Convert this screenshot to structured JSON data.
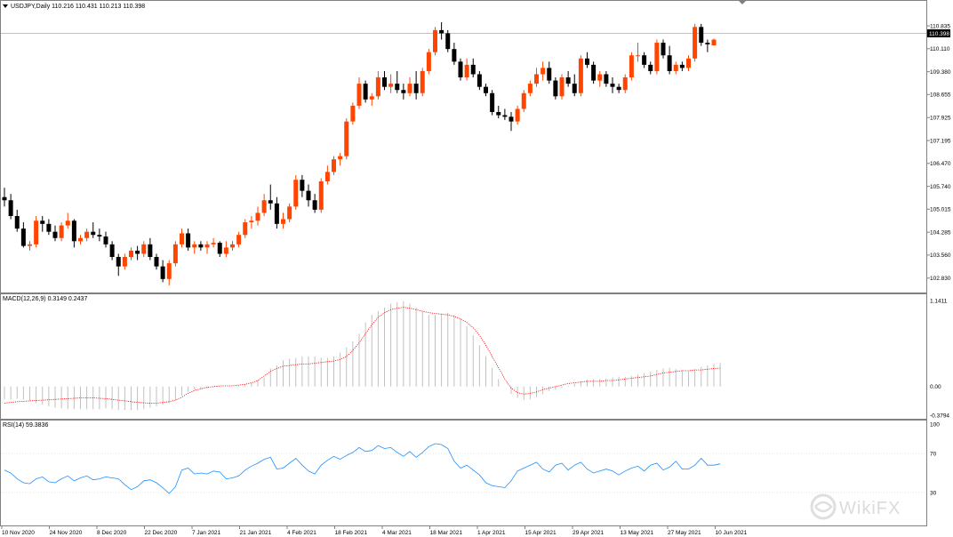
{
  "chart_data": [
    {
      "type": "candlestick",
      "label": "USDJPY,Daily  110.216 110.431 110.213 110.398",
      "current_price_label": "110.398",
      "ylim": [
        102.4,
        111.6
      ],
      "price_ticks": [
        "110.835",
        "110.110",
        "109.380",
        "108.655",
        "107.925",
        "107.195",
        "106.470",
        "105.740",
        "105.015",
        "104.285",
        "103.560",
        "102.830"
      ],
      "colors": {
        "bull": "#ff4500",
        "bear": "#000000",
        "current_line": "#c0c0c0"
      },
      "candles": [
        {
          "o": 105.4,
          "h": 105.7,
          "l": 105.1,
          "c": 105.3
        },
        {
          "o": 105.3,
          "h": 105.5,
          "l": 104.7,
          "c": 104.8
        },
        {
          "o": 104.8,
          "h": 105.0,
          "l": 104.3,
          "c": 104.4
        },
        {
          "o": 104.4,
          "h": 104.6,
          "l": 103.8,
          "c": 103.85
        },
        {
          "o": 103.85,
          "h": 104.0,
          "l": 103.7,
          "c": 103.9
        },
        {
          "o": 103.9,
          "h": 104.8,
          "l": 103.8,
          "c": 104.65
        },
        {
          "o": 104.65,
          "h": 104.8,
          "l": 104.3,
          "c": 104.55
        },
        {
          "o": 104.55,
          "h": 104.7,
          "l": 104.2,
          "c": 104.3
        },
        {
          "o": 104.3,
          "h": 104.5,
          "l": 104.0,
          "c": 104.1
        },
        {
          "o": 104.1,
          "h": 104.6,
          "l": 104.0,
          "c": 104.5
        },
        {
          "o": 104.5,
          "h": 104.9,
          "l": 104.4,
          "c": 104.65
        },
        {
          "o": 104.65,
          "h": 104.7,
          "l": 103.8,
          "c": 104.0
        },
        {
          "o": 104.0,
          "h": 104.2,
          "l": 103.9,
          "c": 104.1
        },
        {
          "o": 104.1,
          "h": 104.4,
          "l": 104.0,
          "c": 104.3
        },
        {
          "o": 104.3,
          "h": 104.6,
          "l": 104.1,
          "c": 104.2
        },
        {
          "o": 104.2,
          "h": 104.4,
          "l": 104.0,
          "c": 104.15
        },
        {
          "o": 104.15,
          "h": 104.3,
          "l": 103.8,
          "c": 103.9
        },
        {
          "o": 103.9,
          "h": 104.0,
          "l": 103.4,
          "c": 103.5
        },
        {
          "o": 103.5,
          "h": 103.6,
          "l": 102.9,
          "c": 103.2
        },
        {
          "o": 103.2,
          "h": 103.6,
          "l": 103.1,
          "c": 103.5
        },
        {
          "o": 103.5,
          "h": 103.8,
          "l": 103.4,
          "c": 103.7
        },
        {
          "o": 103.7,
          "h": 103.85,
          "l": 103.4,
          "c": 103.6
        },
        {
          "o": 103.6,
          "h": 104.0,
          "l": 103.5,
          "c": 103.9
        },
        {
          "o": 103.9,
          "h": 104.1,
          "l": 103.4,
          "c": 103.5
        },
        {
          "o": 103.5,
          "h": 103.6,
          "l": 103.1,
          "c": 103.2
        },
        {
          "o": 103.2,
          "h": 103.4,
          "l": 102.7,
          "c": 102.8
        },
        {
          "o": 102.8,
          "h": 103.4,
          "l": 102.6,
          "c": 103.3
        },
        {
          "o": 103.3,
          "h": 104.0,
          "l": 103.2,
          "c": 103.9
        },
        {
          "o": 103.9,
          "h": 104.4,
          "l": 103.8,
          "c": 104.25
        },
        {
          "o": 104.25,
          "h": 104.4,
          "l": 103.7,
          "c": 103.8
        },
        {
          "o": 103.8,
          "h": 104.0,
          "l": 103.6,
          "c": 103.9
        },
        {
          "o": 103.9,
          "h": 104.0,
          "l": 103.7,
          "c": 103.8
        },
        {
          "o": 103.8,
          "h": 104.0,
          "l": 103.6,
          "c": 103.9
        },
        {
          "o": 103.9,
          "h": 104.1,
          "l": 103.8,
          "c": 103.95
        },
        {
          "o": 103.95,
          "h": 104.0,
          "l": 103.5,
          "c": 103.6
        },
        {
          "o": 103.6,
          "h": 104.0,
          "l": 103.5,
          "c": 103.8
        },
        {
          "o": 103.8,
          "h": 104.0,
          "l": 103.7,
          "c": 103.9
        },
        {
          "o": 103.9,
          "h": 104.3,
          "l": 103.8,
          "c": 104.2
        },
        {
          "o": 104.2,
          "h": 104.7,
          "l": 104.1,
          "c": 104.6
        },
        {
          "o": 104.6,
          "h": 104.8,
          "l": 104.4,
          "c": 104.65
        },
        {
          "o": 104.65,
          "h": 105.1,
          "l": 104.5,
          "c": 104.9
        },
        {
          "o": 104.9,
          "h": 105.5,
          "l": 104.8,
          "c": 105.3
        },
        {
          "o": 105.3,
          "h": 105.8,
          "l": 105.0,
          "c": 105.2
        },
        {
          "o": 105.2,
          "h": 105.4,
          "l": 104.4,
          "c": 104.55
        },
        {
          "o": 104.55,
          "h": 104.9,
          "l": 104.4,
          "c": 104.7
        },
        {
          "o": 104.7,
          "h": 105.2,
          "l": 104.6,
          "c": 105.1
        },
        {
          "o": 105.1,
          "h": 106.1,
          "l": 105.0,
          "c": 105.95
        },
        {
          "o": 105.95,
          "h": 106.1,
          "l": 105.4,
          "c": 105.6
        },
        {
          "o": 105.6,
          "h": 105.8,
          "l": 105.1,
          "c": 105.3
        },
        {
          "o": 105.3,
          "h": 105.5,
          "l": 104.9,
          "c": 105.0
        },
        {
          "o": 105.0,
          "h": 106.0,
          "l": 104.9,
          "c": 105.9
        },
        {
          "o": 105.9,
          "h": 106.4,
          "l": 105.8,
          "c": 106.2
        },
        {
          "o": 106.2,
          "h": 106.7,
          "l": 106.1,
          "c": 106.6
        },
        {
          "o": 106.6,
          "h": 106.8,
          "l": 106.4,
          "c": 106.7
        },
        {
          "o": 106.7,
          "h": 107.9,
          "l": 106.6,
          "c": 107.8
        },
        {
          "o": 107.8,
          "h": 108.4,
          "l": 107.7,
          "c": 108.3
        },
        {
          "o": 108.3,
          "h": 109.2,
          "l": 108.2,
          "c": 109.0
        },
        {
          "o": 109.0,
          "h": 109.1,
          "l": 108.4,
          "c": 108.5
        },
        {
          "o": 108.5,
          "h": 108.7,
          "l": 108.3,
          "c": 108.6
        },
        {
          "o": 108.6,
          "h": 109.4,
          "l": 108.5,
          "c": 109.2
        },
        {
          "o": 109.2,
          "h": 109.4,
          "l": 108.8,
          "c": 108.9
        },
        {
          "o": 108.9,
          "h": 109.3,
          "l": 108.7,
          "c": 109.0
        },
        {
          "o": 109.0,
          "h": 109.4,
          "l": 108.7,
          "c": 108.8
        },
        {
          "o": 108.8,
          "h": 109.0,
          "l": 108.5,
          "c": 108.7
        },
        {
          "o": 108.7,
          "h": 109.2,
          "l": 108.6,
          "c": 109.0
        },
        {
          "o": 109.0,
          "h": 109.4,
          "l": 108.5,
          "c": 108.7
        },
        {
          "o": 108.7,
          "h": 109.5,
          "l": 108.6,
          "c": 109.4
        },
        {
          "o": 109.4,
          "h": 110.1,
          "l": 109.3,
          "c": 110.0
        },
        {
          "o": 110.0,
          "h": 110.8,
          "l": 109.9,
          "c": 110.7
        },
        {
          "o": 110.7,
          "h": 110.95,
          "l": 110.4,
          "c": 110.6
        },
        {
          "o": 110.6,
          "h": 110.7,
          "l": 110.0,
          "c": 110.1
        },
        {
          "o": 110.1,
          "h": 110.3,
          "l": 109.6,
          "c": 109.7
        },
        {
          "o": 109.7,
          "h": 109.8,
          "l": 109.1,
          "c": 109.2
        },
        {
          "o": 109.2,
          "h": 109.8,
          "l": 109.1,
          "c": 109.6
        },
        {
          "o": 109.6,
          "h": 109.8,
          "l": 109.2,
          "c": 109.3
        },
        {
          "o": 109.3,
          "h": 109.4,
          "l": 108.8,
          "c": 108.9
        },
        {
          "o": 108.9,
          "h": 109.0,
          "l": 108.6,
          "c": 108.7
        },
        {
          "o": 108.7,
          "h": 108.8,
          "l": 108.0,
          "c": 108.1
        },
        {
          "o": 108.1,
          "h": 108.3,
          "l": 107.9,
          "c": 108.0
        },
        {
          "o": 108.0,
          "h": 108.2,
          "l": 107.85,
          "c": 107.95
        },
        {
          "o": 107.95,
          "h": 108.1,
          "l": 107.5,
          "c": 107.8
        },
        {
          "o": 107.8,
          "h": 108.3,
          "l": 107.7,
          "c": 108.2
        },
        {
          "o": 108.2,
          "h": 108.8,
          "l": 108.1,
          "c": 108.7
        },
        {
          "o": 108.7,
          "h": 109.1,
          "l": 108.6,
          "c": 109.0
        },
        {
          "o": 109.0,
          "h": 109.5,
          "l": 108.9,
          "c": 109.3
        },
        {
          "o": 109.3,
          "h": 109.7,
          "l": 109.1,
          "c": 109.5
        },
        {
          "o": 109.5,
          "h": 109.7,
          "l": 109.0,
          "c": 109.1
        },
        {
          "o": 109.1,
          "h": 109.2,
          "l": 108.5,
          "c": 108.6
        },
        {
          "o": 108.6,
          "h": 109.3,
          "l": 108.5,
          "c": 109.2
        },
        {
          "o": 109.2,
          "h": 109.4,
          "l": 108.9,
          "c": 109.0
        },
        {
          "o": 109.0,
          "h": 109.3,
          "l": 108.6,
          "c": 108.7
        },
        {
          "o": 108.7,
          "h": 109.9,
          "l": 108.6,
          "c": 109.8
        },
        {
          "o": 109.8,
          "h": 110.0,
          "l": 109.5,
          "c": 109.6
        },
        {
          "o": 109.6,
          "h": 109.7,
          "l": 109.0,
          "c": 109.1
        },
        {
          "o": 109.1,
          "h": 109.4,
          "l": 108.9,
          "c": 109.3
        },
        {
          "o": 109.3,
          "h": 109.4,
          "l": 108.9,
          "c": 109.0
        },
        {
          "o": 109.0,
          "h": 109.2,
          "l": 108.7,
          "c": 108.9
        },
        {
          "o": 108.9,
          "h": 109.0,
          "l": 108.7,
          "c": 108.8
        },
        {
          "o": 108.8,
          "h": 109.3,
          "l": 108.7,
          "c": 109.2
        },
        {
          "o": 109.2,
          "h": 110.0,
          "l": 109.1,
          "c": 109.9
        },
        {
          "o": 109.9,
          "h": 110.3,
          "l": 109.7,
          "c": 109.9
        },
        {
          "o": 109.9,
          "h": 110.0,
          "l": 109.5,
          "c": 109.6
        },
        {
          "o": 109.6,
          "h": 109.7,
          "l": 109.3,
          "c": 109.4
        },
        {
          "o": 109.4,
          "h": 110.4,
          "l": 109.3,
          "c": 110.3
        },
        {
          "o": 110.3,
          "h": 110.4,
          "l": 109.8,
          "c": 109.9
        },
        {
          "o": 109.9,
          "h": 110.2,
          "l": 109.3,
          "c": 109.4
        },
        {
          "o": 109.4,
          "h": 109.7,
          "l": 109.3,
          "c": 109.6
        },
        {
          "o": 109.6,
          "h": 109.7,
          "l": 109.4,
          "c": 109.5
        },
        {
          "o": 109.5,
          "h": 109.9,
          "l": 109.4,
          "c": 109.8
        },
        {
          "o": 109.8,
          "h": 110.9,
          "l": 109.7,
          "c": 110.8
        },
        {
          "o": 110.8,
          "h": 110.9,
          "l": 110.2,
          "c": 110.3
        },
        {
          "o": 110.3,
          "h": 110.4,
          "l": 110.0,
          "c": 110.25
        },
        {
          "o": 110.216,
          "h": 110.431,
          "l": 110.213,
          "c": 110.398
        }
      ]
    },
    {
      "type": "bar+line",
      "label": "MACD(12,26,9) 0.3149 0.2437",
      "ylim": [
        -0.3794,
        1.1411
      ],
      "ticks": [
        "1.1411",
        "0.00",
        "-0.3794"
      ],
      "colors": {
        "histogram": "#c0c0c0",
        "signal": "#ff0000"
      },
      "histogram": [
        -0.17,
        -0.17,
        -0.16,
        -0.17,
        -0.19,
        -0.22,
        -0.24,
        -0.26,
        -0.28,
        -0.29,
        -0.3,
        -0.3,
        -0.3,
        -0.3,
        -0.3,
        -0.3,
        -0.29,
        -0.3,
        -0.31,
        -0.31,
        -0.31,
        -0.31,
        -0.3,
        -0.28,
        -0.26,
        -0.24,
        -0.22,
        -0.18,
        -0.12,
        -0.07,
        -0.04,
        -0.03,
        -0.02,
        -0.01,
        0.0,
        0.0,
        0.0,
        0.01,
        0.03,
        0.05,
        0.08,
        0.12,
        0.24,
        0.28,
        0.35,
        0.37,
        0.38,
        0.4,
        0.4,
        0.4,
        0.38,
        0.38,
        0.4,
        0.45,
        0.52,
        0.6,
        0.7,
        0.85,
        0.95,
        1.0,
        1.05,
        1.1,
        1.12,
        1.13,
        1.1,
        1.05,
        1.0,
        0.95,
        0.95,
        0.97,
        0.98,
        0.95,
        0.9,
        0.8,
        0.68,
        0.55,
        0.4,
        0.25,
        0.1,
        0.0,
        -0.1,
        -0.15,
        -0.18,
        -0.17,
        -0.14,
        -0.1,
        -0.06,
        -0.04,
        -0.02,
        0.01,
        0.04,
        0.07,
        0.09,
        0.1,
        0.1,
        0.11,
        0.12,
        0.13,
        0.13,
        0.14,
        0.16,
        0.18,
        0.2,
        0.22,
        0.24,
        0.25,
        0.23,
        0.22,
        0.2,
        0.23,
        0.26,
        0.28,
        0.3,
        0.3149
      ],
      "signal": [
        -0.22,
        -0.21,
        -0.2,
        -0.195,
        -0.19,
        -0.185,
        -0.18,
        -0.175,
        -0.17,
        -0.165,
        -0.16,
        -0.155,
        -0.15,
        -0.15,
        -0.15,
        -0.155,
        -0.16,
        -0.17,
        -0.18,
        -0.19,
        -0.2,
        -0.21,
        -0.215,
        -0.22,
        -0.22,
        -0.21,
        -0.2,
        -0.18,
        -0.14,
        -0.09,
        -0.05,
        -0.03,
        -0.01,
        0.0,
        0.01,
        0.01,
        0.01,
        0.02,
        0.03,
        0.05,
        0.08,
        0.14,
        0.2,
        0.24,
        0.27,
        0.28,
        0.29,
        0.3,
        0.3,
        0.31,
        0.32,
        0.33,
        0.34,
        0.36,
        0.4,
        0.48,
        0.58,
        0.7,
        0.82,
        0.92,
        0.98,
        1.02,
        1.04,
        1.05,
        1.04,
        1.02,
        1.0,
        0.98,
        0.97,
        0.96,
        0.95,
        0.93,
        0.9,
        0.85,
        0.78,
        0.68,
        0.55,
        0.4,
        0.25,
        0.1,
        -0.02,
        -0.08,
        -0.1,
        -0.09,
        -0.07,
        -0.04,
        -0.02,
        0.0,
        0.02,
        0.04,
        0.05,
        0.06,
        0.07,
        0.07,
        0.07,
        0.08,
        0.08,
        0.09,
        0.1,
        0.11,
        0.12,
        0.13,
        0.14,
        0.16,
        0.18,
        0.19,
        0.2,
        0.21,
        0.21,
        0.22,
        0.22,
        0.23,
        0.24,
        0.2437
      ]
    },
    {
      "type": "line",
      "label": "RSI(14) 59.3836",
      "ylim": [
        0,
        100
      ],
      "ticks": [
        "100",
        "70",
        "30"
      ],
      "levels": [
        70,
        30
      ],
      "colors": {
        "line": "#1e90ff",
        "level": "#c0c0c0"
      },
      "values": [
        53,
        50,
        44,
        40,
        39,
        44,
        46,
        41,
        40,
        44,
        47,
        42,
        45,
        47,
        43,
        44,
        46,
        45,
        44,
        38,
        33,
        36,
        42,
        43,
        40,
        35,
        29,
        36,
        53,
        55,
        49,
        50,
        49,
        52,
        51,
        44,
        45,
        47,
        53,
        57,
        60,
        64,
        66,
        54,
        55,
        60,
        65,
        58,
        52,
        49,
        58,
        63,
        67,
        64,
        68,
        71,
        76,
        72,
        73,
        78,
        75,
        76,
        71,
        67,
        72,
        66,
        71,
        77,
        80,
        79,
        75,
        62,
        55,
        58,
        53,
        48,
        40,
        37,
        36,
        35,
        42,
        52,
        55,
        58,
        61,
        54,
        51,
        58,
        60,
        53,
        58,
        61,
        54,
        50,
        52,
        54,
        52,
        48,
        52,
        55,
        57,
        52,
        58,
        60,
        53,
        56,
        62,
        54,
        54,
        58,
        65,
        58,
        58,
        59.3836
      ]
    },
    {
      "type": "time-axis",
      "labels": [
        "10 Nov 2020",
        "24 Nov 2020",
        "8 Dec 2020",
        "22 Dec 2020",
        "7 Jan 2021",
        "21 Jan 2021",
        "4 Feb 2021",
        "18 Feb 2021",
        "4 Mar 2021",
        "18 Mar 2021",
        "1 Apr 2021",
        "15 Apr 2021",
        "29 Apr 2021",
        "13 May 2021",
        "27 May 2021",
        "10 Jun 2021"
      ]
    }
  ],
  "watermark": {
    "text": "WikiFX",
    "icon": "wikifx-logo-icon"
  }
}
